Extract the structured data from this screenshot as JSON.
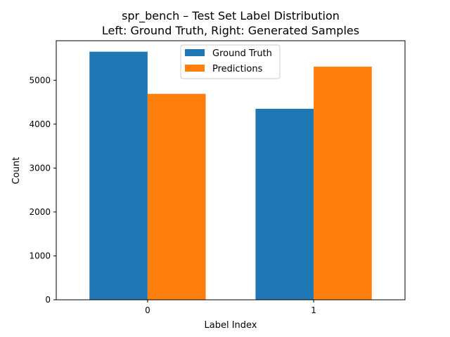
{
  "chart_data": {
    "type": "bar",
    "title": "spr_bench – Test Set Label Distribution",
    "subtitle": "Left: Ground Truth, Right: Generated Samples",
    "xlabel": "Label Index",
    "ylabel": "Count",
    "categories": [
      "0",
      "1"
    ],
    "ylim": [
      0,
      5900
    ],
    "yticks": [
      0,
      1000,
      2000,
      3000,
      4000,
      5000
    ],
    "ytick_labels": [
      "0",
      "1000",
      "2000",
      "3000",
      "4000",
      "5000"
    ],
    "grid": false,
    "legend_position": "top-center",
    "series": [
      {
        "name": "Ground Truth",
        "color": "#1f77b4",
        "values": [
          5650,
          4350
        ]
      },
      {
        "name": "Predictions",
        "color": "#ff7f0e",
        "values": [
          4690,
          5310
        ]
      }
    ]
  }
}
